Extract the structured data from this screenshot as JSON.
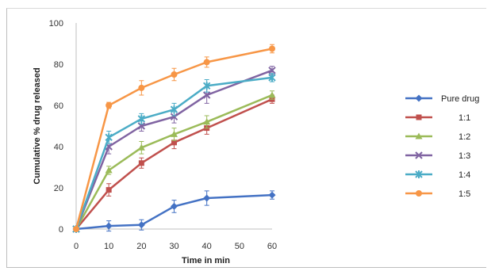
{
  "chart_data": {
    "type": "line",
    "title": "",
    "xlabel": "Time in min",
    "ylabel": "Cumulative % drug released",
    "xlim": [
      0,
      60
    ],
    "ylim": [
      0,
      100
    ],
    "x_ticks": [
      0,
      10,
      20,
      30,
      40,
      50,
      60
    ],
    "y_ticks": [
      0,
      20,
      40,
      60,
      80,
      100
    ],
    "grid": false,
    "legend_position": "right",
    "x": [
      0,
      10,
      20,
      30,
      40,
      60
    ],
    "series": [
      {
        "name": "Pure drug",
        "color": "#4472C4",
        "marker": "diamond",
        "values": [
          0,
          1.5,
          2,
          11,
          15,
          16.5
        ],
        "errors": [
          0,
          2.5,
          2.5,
          3,
          3.5,
          2
        ]
      },
      {
        "name": "1:1",
        "color": "#C0504D",
        "marker": "square",
        "values": [
          0,
          19,
          32,
          42,
          49,
          63
        ],
        "errors": [
          0,
          3,
          2.5,
          3,
          3,
          2
        ]
      },
      {
        "name": "1:2",
        "color": "#9BBB59",
        "marker": "triangle",
        "values": [
          0,
          28.5,
          39.5,
          46,
          52,
          65
        ],
        "errors": [
          0,
          2,
          3,
          3,
          3,
          2
        ]
      },
      {
        "name": "1:3",
        "color": "#8064A2",
        "marker": "x",
        "values": [
          0,
          40,
          50,
          54.5,
          65,
          77
        ],
        "errors": [
          0,
          3.5,
          2.5,
          3,
          4,
          2
        ]
      },
      {
        "name": "1:4",
        "color": "#4BACC6",
        "marker": "star",
        "values": [
          0,
          44.5,
          53.5,
          58,
          69.5,
          73.5
        ],
        "errors": [
          0,
          3,
          2.5,
          3,
          3,
          2
        ]
      },
      {
        "name": "1:5",
        "color": "#F79646",
        "marker": "circle",
        "values": [
          0,
          60,
          68.5,
          75,
          81,
          87.5
        ],
        "errors": [
          0,
          1.5,
          3.5,
          3,
          2.5,
          2
        ]
      }
    ]
  }
}
